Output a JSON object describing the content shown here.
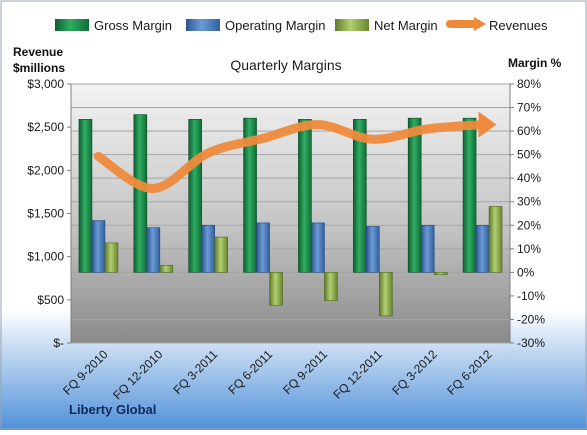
{
  "company": "Liberty Global",
  "colors": {
    "gross": "#1f8a4c",
    "operating": "#4a78b8",
    "net": "#8aab4a",
    "revenue": "#ef8a3c",
    "plot_top": "#f2f2f2",
    "plot_bottom": "#8c8c8c"
  },
  "chart_data": {
    "type": "bar",
    "title": "Quarterly Margins",
    "left_axis_label": "Revenue $millions",
    "left_axis_label_lines": [
      "Revenue",
      "$millions"
    ],
    "right_axis_label": "Margin %",
    "categories": [
      "FQ 9-2010",
      "FQ 12-2010",
      "FQ 3-2011",
      "FQ 6-2011",
      "FQ 9-2011",
      "FQ 12-2011",
      "FQ 3-2012",
      "FQ 6-2012"
    ],
    "left_axis": {
      "min": 0,
      "max": 3000,
      "step": 500,
      "tick_labels": [
        "$-",
        "$500",
        "$1,000",
        "$1,500",
        "$2,000",
        "$2,500",
        "$3,000"
      ]
    },
    "right_axis": {
      "min": -30,
      "max": 80,
      "step": 10,
      "tick_labels": [
        "-30%",
        "-20%",
        "-10%",
        "0%",
        "10%",
        "20%",
        "30%",
        "40%",
        "50%",
        "60%",
        "70%",
        "80%"
      ]
    },
    "legend": {
      "position": "top",
      "entries": [
        "Gross Margin",
        "Operating Margin",
        "Net Margin",
        "Revenues"
      ]
    },
    "grid": true,
    "series": [
      {
        "name": "Gross Margin",
        "kind": "bar",
        "axis": "right",
        "values": [
          65,
          67,
          65,
          65.5,
          65,
          65,
          65.5,
          65.5
        ]
      },
      {
        "name": "Operating Margin",
        "kind": "bar",
        "axis": "right",
        "values": [
          22,
          19,
          20,
          21,
          21,
          19.5,
          20,
          20
        ]
      },
      {
        "name": "Net Margin",
        "kind": "bar",
        "axis": "right",
        "values": [
          12.5,
          3,
          15,
          -14,
          -12,
          -18.5,
          -1,
          28
        ]
      },
      {
        "name": "Revenues",
        "kind": "line",
        "axis": "left",
        "values": [
          2160,
          1790,
          2200,
          2370,
          2530,
          2360,
          2480,
          2530
        ]
      }
    ]
  }
}
